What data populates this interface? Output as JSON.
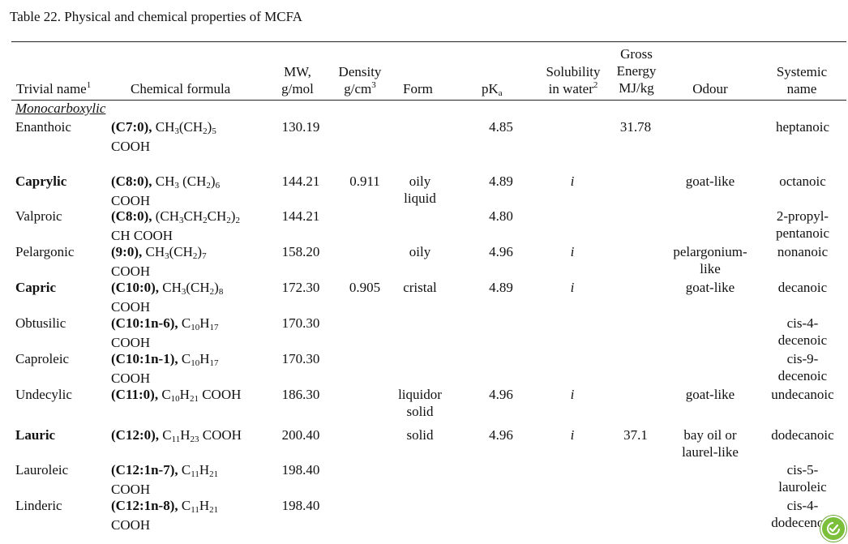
{
  "caption": "Table 22. Physical and chemical properties of MCFA",
  "headers": {
    "trivial_name": "Trivial name",
    "trivial_name_sup": "1",
    "chemical_formula": "Chemical formula",
    "mw_line1": "MW,",
    "mw_line2": "g/mol",
    "density_line1": "Density",
    "density_line2": "g/cm",
    "density_sup": "3",
    "form": "Form",
    "pka": "pK",
    "pka_sub": "a",
    "solubility_line1": "Solubility",
    "solubility_line2": "in water",
    "solubility_sup": "2",
    "energy_line1": "Gross",
    "energy_line2": "Energy",
    "energy_line3": "MJ/kg",
    "odour": "Odour",
    "systemic_line1": "Systemic",
    "systemic_line2": "name"
  },
  "section_label": "Monocarboxylic",
  "rows": [
    {
      "name": "Enanthoic",
      "bold_name": false,
      "code": "(C7:0),",
      "f1": "CH",
      "f1s": "3",
      "f2": "(CH",
      "f2s": "2",
      "f3": ")",
      "f3s": "5",
      "line2": "COOH",
      "mw": "130.19",
      "density": "",
      "form": [
        "",
        ""
      ],
      "pka": "4.85",
      "sol": "",
      "energy": "31.78",
      "odour": [
        "",
        ""
      ],
      "sys": [
        "heptanoic",
        ""
      ]
    },
    {
      "name": "Caprylic",
      "bold_name": true,
      "code": "(C8:0),",
      "f1": "CH",
      "f1s": "3",
      "f2": " (CH",
      "f2s": "2",
      "f3": ")",
      "f3s": "6",
      "line2": "COOH",
      "mw": "144.21",
      "density": "0.911",
      "form": [
        "oily",
        "liquid"
      ],
      "pka": "4.89",
      "sol": "i",
      "energy": "",
      "odour": [
        "goat-like",
        ""
      ],
      "sys": [
        "octanoic",
        ""
      ]
    },
    {
      "name": "Valproic",
      "bold_name": false,
      "code": "(C8:0),",
      "f1": "(CH",
      "f1s": "3",
      "f2": "CH",
      "f2s": "2",
      "f3": "CH",
      "f3s": "2",
      "f4": ")",
      "f4s": "2",
      "line2": "CH COOH",
      "mw": "144.21",
      "density": "",
      "form": [
        "",
        ""
      ],
      "pka": "4.80",
      "sol": "",
      "energy": "",
      "odour": [
        "",
        ""
      ],
      "sys": [
        "2-propyl-",
        "pentanoic"
      ]
    },
    {
      "name": "Pelargonic",
      "bold_name": false,
      "code": "(9:0),",
      "f1": "CH",
      "f1s": "3",
      "f2": "(CH",
      "f2s": "2",
      "f3": ")",
      "f3s": "7",
      "line2": "COOH",
      "mw": "158.20",
      "density": "",
      "form": [
        "oily",
        ""
      ],
      "pka": "4.96",
      "sol": "i",
      "energy": "",
      "odour": [
        "pelargonium-",
        "like"
      ],
      "sys": [
        "nonanoic",
        ""
      ]
    },
    {
      "name": "Capric",
      "bold_name": true,
      "code": "(C10:0),",
      "f1": "CH",
      "f1s": "3",
      "f2": "(CH",
      "f2s": "2",
      "f3": ")",
      "f3s": "8",
      "line2": "COOH",
      "mw": "172.30",
      "density": "0.905",
      "form": [
        "cristal",
        ""
      ],
      "pka": "4.89",
      "sol": "i",
      "energy": "",
      "odour": [
        "goat-like",
        ""
      ],
      "sys": [
        "decanoic",
        ""
      ]
    },
    {
      "name": "Obtusilic",
      "bold_name": false,
      "code": "(C10:1n-6),",
      "f1": "C",
      "f1s": "10",
      "f2": "H",
      "f2s": "17",
      "f3": "",
      "f3s": "",
      "line2": "COOH",
      "mw": "170.30",
      "density": "",
      "form": [
        "",
        ""
      ],
      "pka": "",
      "sol": "",
      "energy": "",
      "odour": [
        "",
        ""
      ],
      "sys": [
        "cis-4-",
        "decenoic"
      ]
    },
    {
      "name": "Caproleic",
      "bold_name": false,
      "code": "(C10:1n-1),",
      "f1": "C",
      "f1s": "10",
      "f2": "H",
      "f2s": "17",
      "f3": "",
      "f3s": "",
      "line2": "COOH",
      "mw": "170.30",
      "density": "",
      "form": [
        "",
        ""
      ],
      "pka": "",
      "sol": "",
      "energy": "",
      "odour": [
        "",
        ""
      ],
      "sys": [
        "cis-9-",
        "decenoic"
      ]
    },
    {
      "name": "Undecylic",
      "bold_name": false,
      "code": "(C11:0),",
      "f1": "C",
      "f1s": "10",
      "f2": "H",
      "f2s": "21",
      "f3": " COOH",
      "f3s": "",
      "line2": "",
      "mw": "186.30",
      "density": "",
      "form": [
        "liquidor",
        "solid"
      ],
      "pka": "4.96",
      "sol": "i",
      "energy": "",
      "odour": [
        "goat-like",
        ""
      ],
      "sys": [
        "undecanoic",
        ""
      ]
    },
    {
      "name": "Lauric",
      "bold_name": true,
      "code": "(C12:0),",
      "f1": "C",
      "f1s": "11",
      "f2": "H",
      "f2s": "23",
      "f3": " COOH",
      "f3s": "",
      "line2": "",
      "mw": "200.40",
      "density": "",
      "form": [
        "solid",
        ""
      ],
      "pka": "4.96",
      "sol": "i",
      "energy": "37.1",
      "odour": [
        "bay oil or",
        "laurel-like"
      ],
      "sys": [
        "dodecanoic",
        ""
      ]
    },
    {
      "name": "Lauroleic",
      "bold_name": false,
      "code": "(C12:1n-7),",
      "f1": "C",
      "f1s": "11",
      "f2": "H",
      "f2s": "21",
      "f3": "",
      "f3s": "",
      "line2": "COOH",
      "mw": "198.40",
      "density": "",
      "form": [
        "",
        ""
      ],
      "pka": "",
      "sol": "",
      "energy": "",
      "odour": [
        "",
        ""
      ],
      "sys": [
        "cis-5-",
        "lauroleic"
      ]
    },
    {
      "name": "Linderic",
      "bold_name": false,
      "code": "(C12:1n-8),",
      "f1": "C",
      "f1s": "11",
      "f2": "H",
      "f2s": "21",
      "f3": "",
      "f3s": "",
      "line2": "COOH",
      "mw": "198.40",
      "density": "",
      "form": [
        "",
        ""
      ],
      "pka": "",
      "sol": "",
      "energy": "",
      "odour": [
        "",
        ""
      ],
      "sys": [
        "cis-4-",
        "dodecenoic"
      ]
    }
  ],
  "badge_icon": "leaf-check-icon",
  "badge_color": "#7bbf3a"
}
